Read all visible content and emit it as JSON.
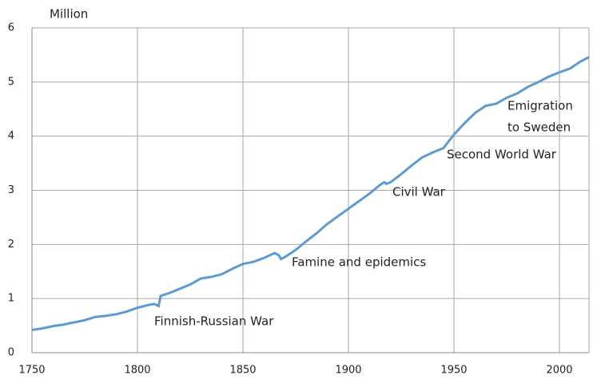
{
  "chart_data": {
    "type": "line",
    "y_label": "Million",
    "x": [
      1750,
      1755,
      1760,
      1765,
      1770,
      1775,
      1780,
      1785,
      1790,
      1795,
      1800,
      1805,
      1808,
      1810,
      1811,
      1815,
      1820,
      1825,
      1830,
      1835,
      1840,
      1845,
      1850,
      1855,
      1860,
      1865,
      1867,
      1868,
      1870,
      1875,
      1880,
      1885,
      1890,
      1895,
      1900,
      1905,
      1910,
      1915,
      1917,
      1918,
      1920,
      1925,
      1930,
      1935,
      1940,
      1945,
      1950,
      1955,
      1960,
      1965,
      1970,
      1975,
      1980,
      1985,
      1990,
      1995,
      2000,
      2005,
      2010,
      2014
    ],
    "series": [
      {
        "color": "#5b9bd5",
        "values": [
          0.42,
          0.45,
          0.49,
          0.52,
          0.56,
          0.6,
          0.66,
          0.68,
          0.71,
          0.76,
          0.83,
          0.88,
          0.9,
          0.86,
          1.05,
          1.1,
          1.18,
          1.26,
          1.37,
          1.4,
          1.45,
          1.55,
          1.64,
          1.68,
          1.75,
          1.84,
          1.8,
          1.73,
          1.77,
          1.9,
          2.06,
          2.21,
          2.38,
          2.52,
          2.66,
          2.8,
          2.94,
          3.1,
          3.15,
          3.12,
          3.15,
          3.3,
          3.46,
          3.61,
          3.7,
          3.78,
          4.03,
          4.24,
          4.43,
          4.56,
          4.6,
          4.71,
          4.79,
          4.91,
          5.0,
          5.1,
          5.18,
          5.25,
          5.38,
          5.46
        ]
      }
    ],
    "xlim": [
      1750,
      2014
    ],
    "xticks": [
      1750,
      1800,
      1850,
      1900,
      1950,
      2000
    ],
    "ylim": [
      0,
      6
    ],
    "yticks": [
      0,
      1,
      2,
      3,
      4,
      5,
      6
    ],
    "grid": true,
    "annotations": [
      [
        "Finnish-Russian War"
      ],
      [
        "Famine and epidemics"
      ],
      [
        "Civil War"
      ],
      [
        "Second World War"
      ],
      [
        "Emigration",
        "to Sweden"
      ]
    ]
  }
}
